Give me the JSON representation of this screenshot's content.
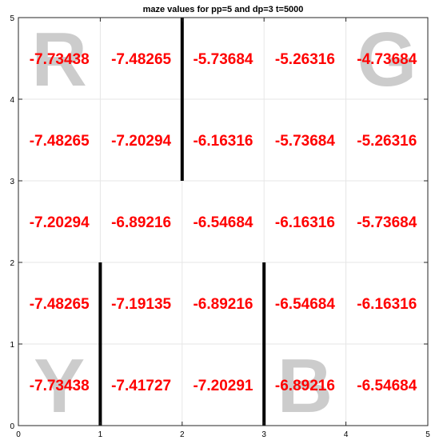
{
  "chart_data": {
    "type": "heatmap",
    "title": "maze values for pp=5 and dp=3 t=5000",
    "xlim": [
      0,
      5
    ],
    "ylim": [
      0,
      5
    ],
    "x_ticks": [
      "0",
      "1",
      "2",
      "3",
      "4",
      "5"
    ],
    "y_ticks": [
      "0",
      "1",
      "2",
      "3",
      "4",
      "5"
    ],
    "grid": true,
    "rows": [
      [
        "-7.73438",
        "-7.48265",
        "-5.73684",
        "-5.26316",
        "-4.73684"
      ],
      [
        "-7.48265",
        "-7.20294",
        "-6.16316",
        "-5.73684",
        "-5.26316"
      ],
      [
        "-7.20294",
        "-6.89216",
        "-6.54684",
        "-6.16316",
        "-5.73684"
      ],
      [
        "-7.48265",
        "-7.19135",
        "-6.89216",
        "-6.54684",
        "-6.16316"
      ],
      [
        "-7.73438",
        "-7.41727",
        "-7.20291",
        "-6.89216",
        "-6.54684"
      ]
    ],
    "walls": [
      {
        "x": 2,
        "y0": 3,
        "y1": 5
      },
      {
        "x": 1,
        "y0": 0,
        "y1": 2
      },
      {
        "x": 3,
        "y0": 0,
        "y1": 2
      }
    ],
    "corner_labels": [
      {
        "text": "R",
        "col": 0,
        "row": 0
      },
      {
        "text": "G",
        "col": 4,
        "row": 0
      },
      {
        "text": "Y",
        "col": 0,
        "row": 4
      },
      {
        "text": "B",
        "col": 3,
        "row": 4
      }
    ],
    "colors": {
      "value_text": "#ff0000",
      "corner_letters": "#cccccc",
      "walls": "#000000",
      "grid": "#e6e6e6"
    }
  }
}
